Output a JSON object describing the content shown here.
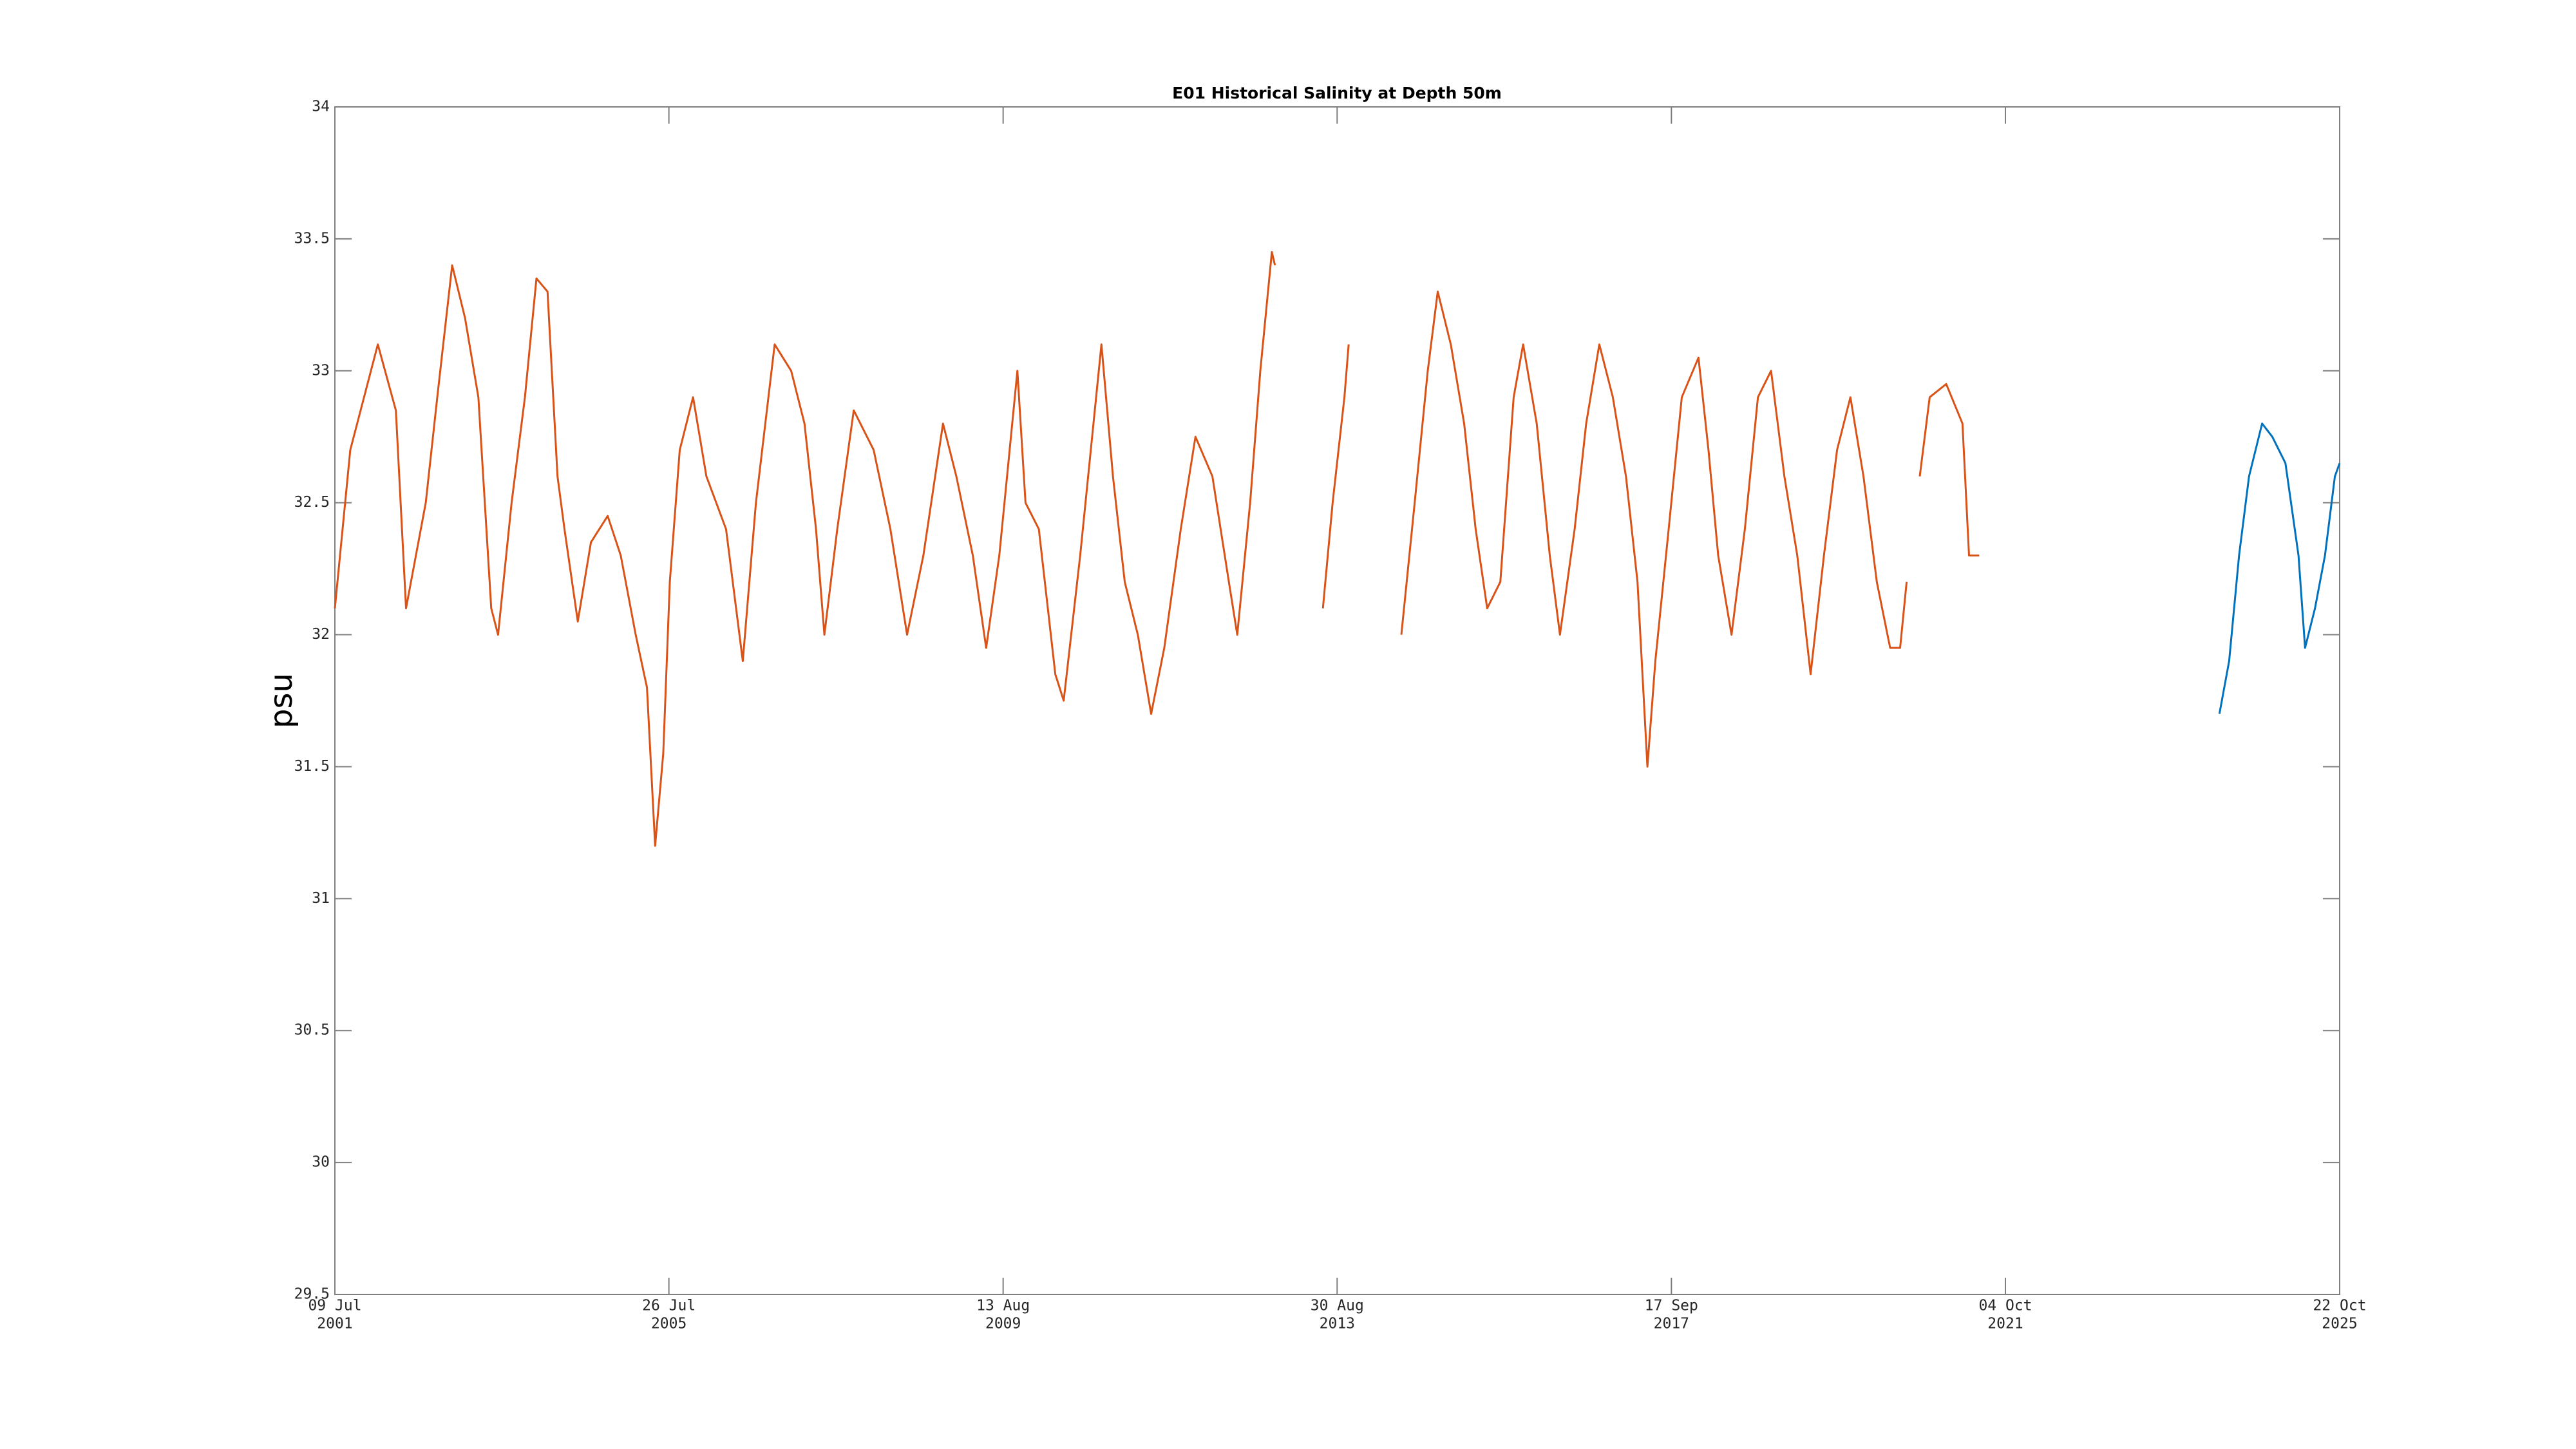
{
  "chart_data": {
    "type": "line",
    "title": "E01 Historical Salinity at Depth 50m",
    "y_label": "psu",
    "xlim": [
      "2001-07-09",
      "2025-10-22"
    ],
    "xticks": [
      {
        "value": "2001-07-09",
        "label": [
          "09 Jul",
          "2001"
        ]
      },
      {
        "value": "2005-07-26",
        "label": [
          "26 Jul",
          "2005"
        ]
      },
      {
        "value": "2009-08-13",
        "label": [
          "13 Aug",
          "2009"
        ]
      },
      {
        "value": "2013-08-30",
        "label": [
          "30 Aug",
          "2013"
        ]
      },
      {
        "value": "2017-09-17",
        "label": [
          "17 Sep",
          "2017"
        ]
      },
      {
        "value": "2021-10-04",
        "label": [
          "04 Oct",
          "2021"
        ]
      },
      {
        "value": "2025-10-22",
        "label": [
          "22 Oct",
          "2025"
        ]
      }
    ],
    "ylim": [
      29.5,
      34
    ],
    "yticks": [
      29.5,
      30,
      30.5,
      31,
      31.5,
      32,
      32.5,
      33,
      33.5,
      34
    ],
    "series": [
      {
        "color": "#d95319",
        "x": [
          "2001-07-09",
          "2001-09-15",
          "2002-01-15",
          "2002-04-05",
          "2002-05-20",
          "2002-08-15",
          "2002-10-05",
          "2002-12-10",
          "2003-02-05",
          "2003-04-05",
          "2003-06-01",
          "2003-07-01",
          "2003-08-30",
          "2003-10-28",
          "2003-12-18",
          "2004-02-05",
          "2004-03-20",
          "2004-04-20",
          "2004-06-18",
          "2004-08-15",
          "2004-10-28",
          "2004-12-25",
          "2005-03-01",
          "2005-04-20",
          "2005-05-26",
          "2005-07-01",
          "2005-07-30",
          "2005-09-12",
          "2005-11-10",
          "2006-01-08",
          "2006-04-05",
          "2006-06-18",
          "2006-08-15",
          "2006-11-06",
          "2007-01-18",
          "2007-03-18",
          "2007-05-08",
          "2007-06-14",
          "2007-08-10",
          "2007-10-22",
          "2008-01-18",
          "2008-04-01",
          "2008-06-14",
          "2008-08-25",
          "2008-11-20",
          "2009-01-18",
          "2009-04-01",
          "2009-05-30",
          "2009-07-27",
          "2009-10-15",
          "2009-11-20",
          "2010-01-18",
          "2010-04-01",
          "2010-05-08",
          "2010-07-20",
          "2010-10-22",
          "2010-12-12",
          "2011-02-02",
          "2011-04-01",
          "2011-05-30",
          "2011-07-27",
          "2011-10-08",
          "2011-12-12",
          "2012-02-25",
          "2012-05-08",
          "2012-06-14",
          "2012-08-10",
          "2012-09-24",
          "2012-11-14",
          "2012-11-28",
          "2013-03-01",
          "2013-06-28",
          "2013-08-10",
          "2013-10-01",
          "2013-10-20",
          "2014-02-01",
          "2014-06-10",
          "2014-08-08",
          "2014-10-05",
          "2014-11-18",
          "2015-01-15",
          "2015-03-15",
          "2015-05-05",
          "2015-06-25",
          "2015-08-22",
          "2015-10-20",
          "2015-12-01",
          "2016-01-30",
          "2016-03-28",
          "2016-05-12",
          "2016-07-16",
          "2016-09-05",
          "2016-11-02",
          "2017-01-01",
          "2017-02-28",
          "2017-04-20",
          "2017-06-03",
          "2017-07-08",
          "2017-09-05",
          "2017-11-02",
          "2018-01-15",
          "2018-02-28",
          "2018-04-12",
          "2018-06-10",
          "2018-08-08",
          "2018-10-05",
          "2018-12-02",
          "2019-01-30",
          "2019-03-28",
          "2019-05-26",
          "2019-07-24",
          "2019-09-20",
          "2019-11-18",
          "2020-01-15",
          "2020-03-14",
          "2020-05-12",
          "2020-06-25",
          "2020-07-24",
          "2020-08-20",
          "2020-09-20",
          "2020-11-03",
          "2021-01-15",
          "2021-03-28",
          "2021-04-26",
          "2021-06-10"
        ],
        "values": [
          32.1,
          32.7,
          33.1,
          32.85,
          32.1,
          32.5,
          32.9,
          33.4,
          33.2,
          32.9,
          32.1,
          32.0,
          32.5,
          32.9,
          33.35,
          33.3,
          32.6,
          32.4,
          32.05,
          32.35,
          32.45,
          32.3,
          32.0,
          31.8,
          31.2,
          31.55,
          32.2,
          32.7,
          32.9,
          32.6,
          32.4,
          31.9,
          32.5,
          33.1,
          33.0,
          32.8,
          32.4,
          32.0,
          32.4,
          32.85,
          32.7,
          32.4,
          32.0,
          32.3,
          32.8,
          32.6,
          32.3,
          31.95,
          32.3,
          33.0,
          32.5,
          32.4,
          31.85,
          31.75,
          32.3,
          33.1,
          32.6,
          32.2,
          32.0,
          31.7,
          31.95,
          32.4,
          32.75,
          32.6,
          32.2,
          32.0,
          32.5,
          33.0,
          33.45,
          33.4,
          null,
          32.1,
          32.5,
          32.9,
          33.1,
          null,
          32.0,
          32.5,
          33.0,
          33.3,
          33.1,
          32.8,
          32.4,
          32.1,
          32.2,
          32.9,
          33.1,
          32.8,
          32.3,
          32.0,
          32.4,
          32.8,
          33.1,
          32.9,
          32.6,
          32.2,
          31.5,
          31.9,
          32.4,
          32.9,
          33.05,
          32.7,
          32.3,
          32.0,
          32.4,
          32.9,
          33.0,
          32.6,
          32.3,
          31.85,
          32.3,
          32.7,
          32.9,
          32.6,
          32.2,
          31.95,
          31.95,
          32.2,
          null,
          32.6,
          32.9,
          32.95,
          32.8,
          32.3,
          32.3
        ]
      },
      {
        "color": "#0072bd",
        "x": [
          "2024-05-08",
          "2024-06-20",
          "2024-08-03",
          "2024-09-16",
          "2024-11-13",
          "2024-12-28",
          "2025-02-24",
          "2025-04-23",
          "2025-05-22",
          "2025-07-05",
          "2025-08-18",
          "2025-10-01",
          "2025-10-22"
        ],
        "values": [
          31.7,
          31.9,
          32.3,
          32.6,
          32.8,
          32.75,
          32.65,
          32.3,
          31.95,
          32.1,
          32.3,
          32.6,
          32.65
        ]
      }
    ]
  }
}
